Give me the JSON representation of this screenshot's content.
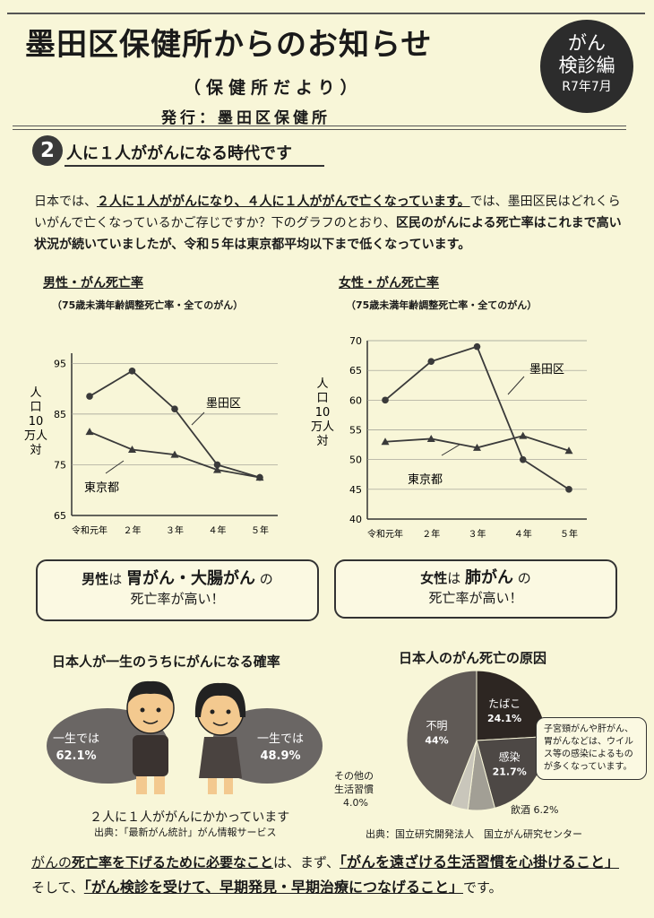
{
  "header": {
    "title": "墨田区保健所からのお知らせ",
    "subtitle": "（保健所だより）",
    "issuer": "発行：墨田区保健所",
    "badge_line1": "がん",
    "badge_line2": "検診編",
    "badge_date": "R7年7月"
  },
  "section": {
    "number": "2",
    "title": "人に１人ががんになる時代です"
  },
  "intro": {
    "p1": "日本では、",
    "p2": "２人に１人ががんになり、４人に１人ががんで亡くなっています。",
    "p3": "では、墨田区民はどれくらいがんで亡くなっているかご存じですか？下のグラフのとおり、",
    "p4": "区民のがんによる死亡率はこれまで高い状況が続いていましたが、令和５年は東京都平均以下まで低くなっています。"
  },
  "male_callout": {
    "t1": "男性",
    "t2": "は",
    "t3": "胃がん・大腸がん",
    "t4": "の",
    "t5": "死亡率が高い！"
  },
  "female_callout": {
    "t1": "女性",
    "t2": "は",
    "t3": "肺がん",
    "t4": "の",
    "t5": "死亡率が高い！"
  },
  "probability": {
    "title": "日本人が一生のうちにがんになる確率",
    "male_label": "一生では",
    "male_value": "62.1%",
    "female_label": "一生では",
    "female_value": "48.9%",
    "caption": "２人に１人ががんにかかっています",
    "source": "出典：「最新がん統計」がん情報サービス"
  },
  "pie": {
    "title": "日本人のがん死亡の原因",
    "note": "子宮頸がんや肝がん、胃がんなどは、ウイルス等の感染によるものが多くなっています。",
    "source": "出典：国立研究開発法人　国立がん研究センター",
    "other_line1": "その他の",
    "other_line2": "生活習慣",
    "other_value": "4.0%",
    "drink_label": "飲酒",
    "drink_value": "6.2%"
  },
  "footer": {
    "a1": "がんの",
    "a2": "死亡率を下げるために必要なこと",
    "a3": "は、まず、",
    "a4": "「がんを遠ざける生活習慣を心掛けること」",
    "b1": "そして、",
    "b2": "「がん検診を受けて、早期発見・早期治療につなげること」",
    "b3": "です。"
  },
  "chart_data": [
    {
      "type": "line",
      "title": "男性・がん死亡率",
      "subtitle": "（75歳未満年齢調整死亡率・全てのがん）",
      "ylabel": "人口10万人対",
      "categories": [
        "令和元年",
        "２年",
        "３年",
        "４年",
        "５年"
      ],
      "yticks": [
        65,
        75,
        85,
        95
      ],
      "ylim": [
        65,
        97
      ],
      "series": [
        {
          "name": "墨田区",
          "values": [
            88.5,
            93.5,
            86,
            75,
            72.5
          ],
          "marker": "circle"
        },
        {
          "name": "東京都",
          "values": [
            81.5,
            78,
            77,
            74,
            72.5
          ],
          "marker": "triangle"
        }
      ]
    },
    {
      "type": "line",
      "title": "女性・がん死亡率",
      "subtitle": "（75歳未満年齢調整死亡率・全てのがん）",
      "ylabel": "人口10万人対",
      "categories": [
        "令和元年",
        "２年",
        "３年",
        "４年",
        "５年"
      ],
      "yticks": [
        40,
        45,
        50,
        55,
        60,
        65,
        70
      ],
      "ylim": [
        40,
        70
      ],
      "series": [
        {
          "name": "墨田区",
          "values": [
            60,
            66.5,
            69,
            50,
            45
          ],
          "marker": "circle"
        },
        {
          "name": "東京都",
          "values": [
            53,
            53.5,
            52,
            54,
            51.5
          ],
          "marker": "triangle"
        }
      ]
    },
    {
      "type": "pie",
      "title": "日本人のがん死亡の原因",
      "slices": [
        {
          "label": "たばこ",
          "value": 24.1,
          "color": "#2d2622"
        },
        {
          "label": "感染",
          "value": 21.7,
          "color": "#4d4845"
        },
        {
          "label": "飲酒",
          "value": 6.2,
          "color": "#a29f95"
        },
        {
          "label": "その他の生活習慣",
          "value": 4.0,
          "color": "#c9c6bb"
        },
        {
          "label": "不明",
          "value": 44.0,
          "color": "#605a56"
        }
      ]
    }
  ]
}
